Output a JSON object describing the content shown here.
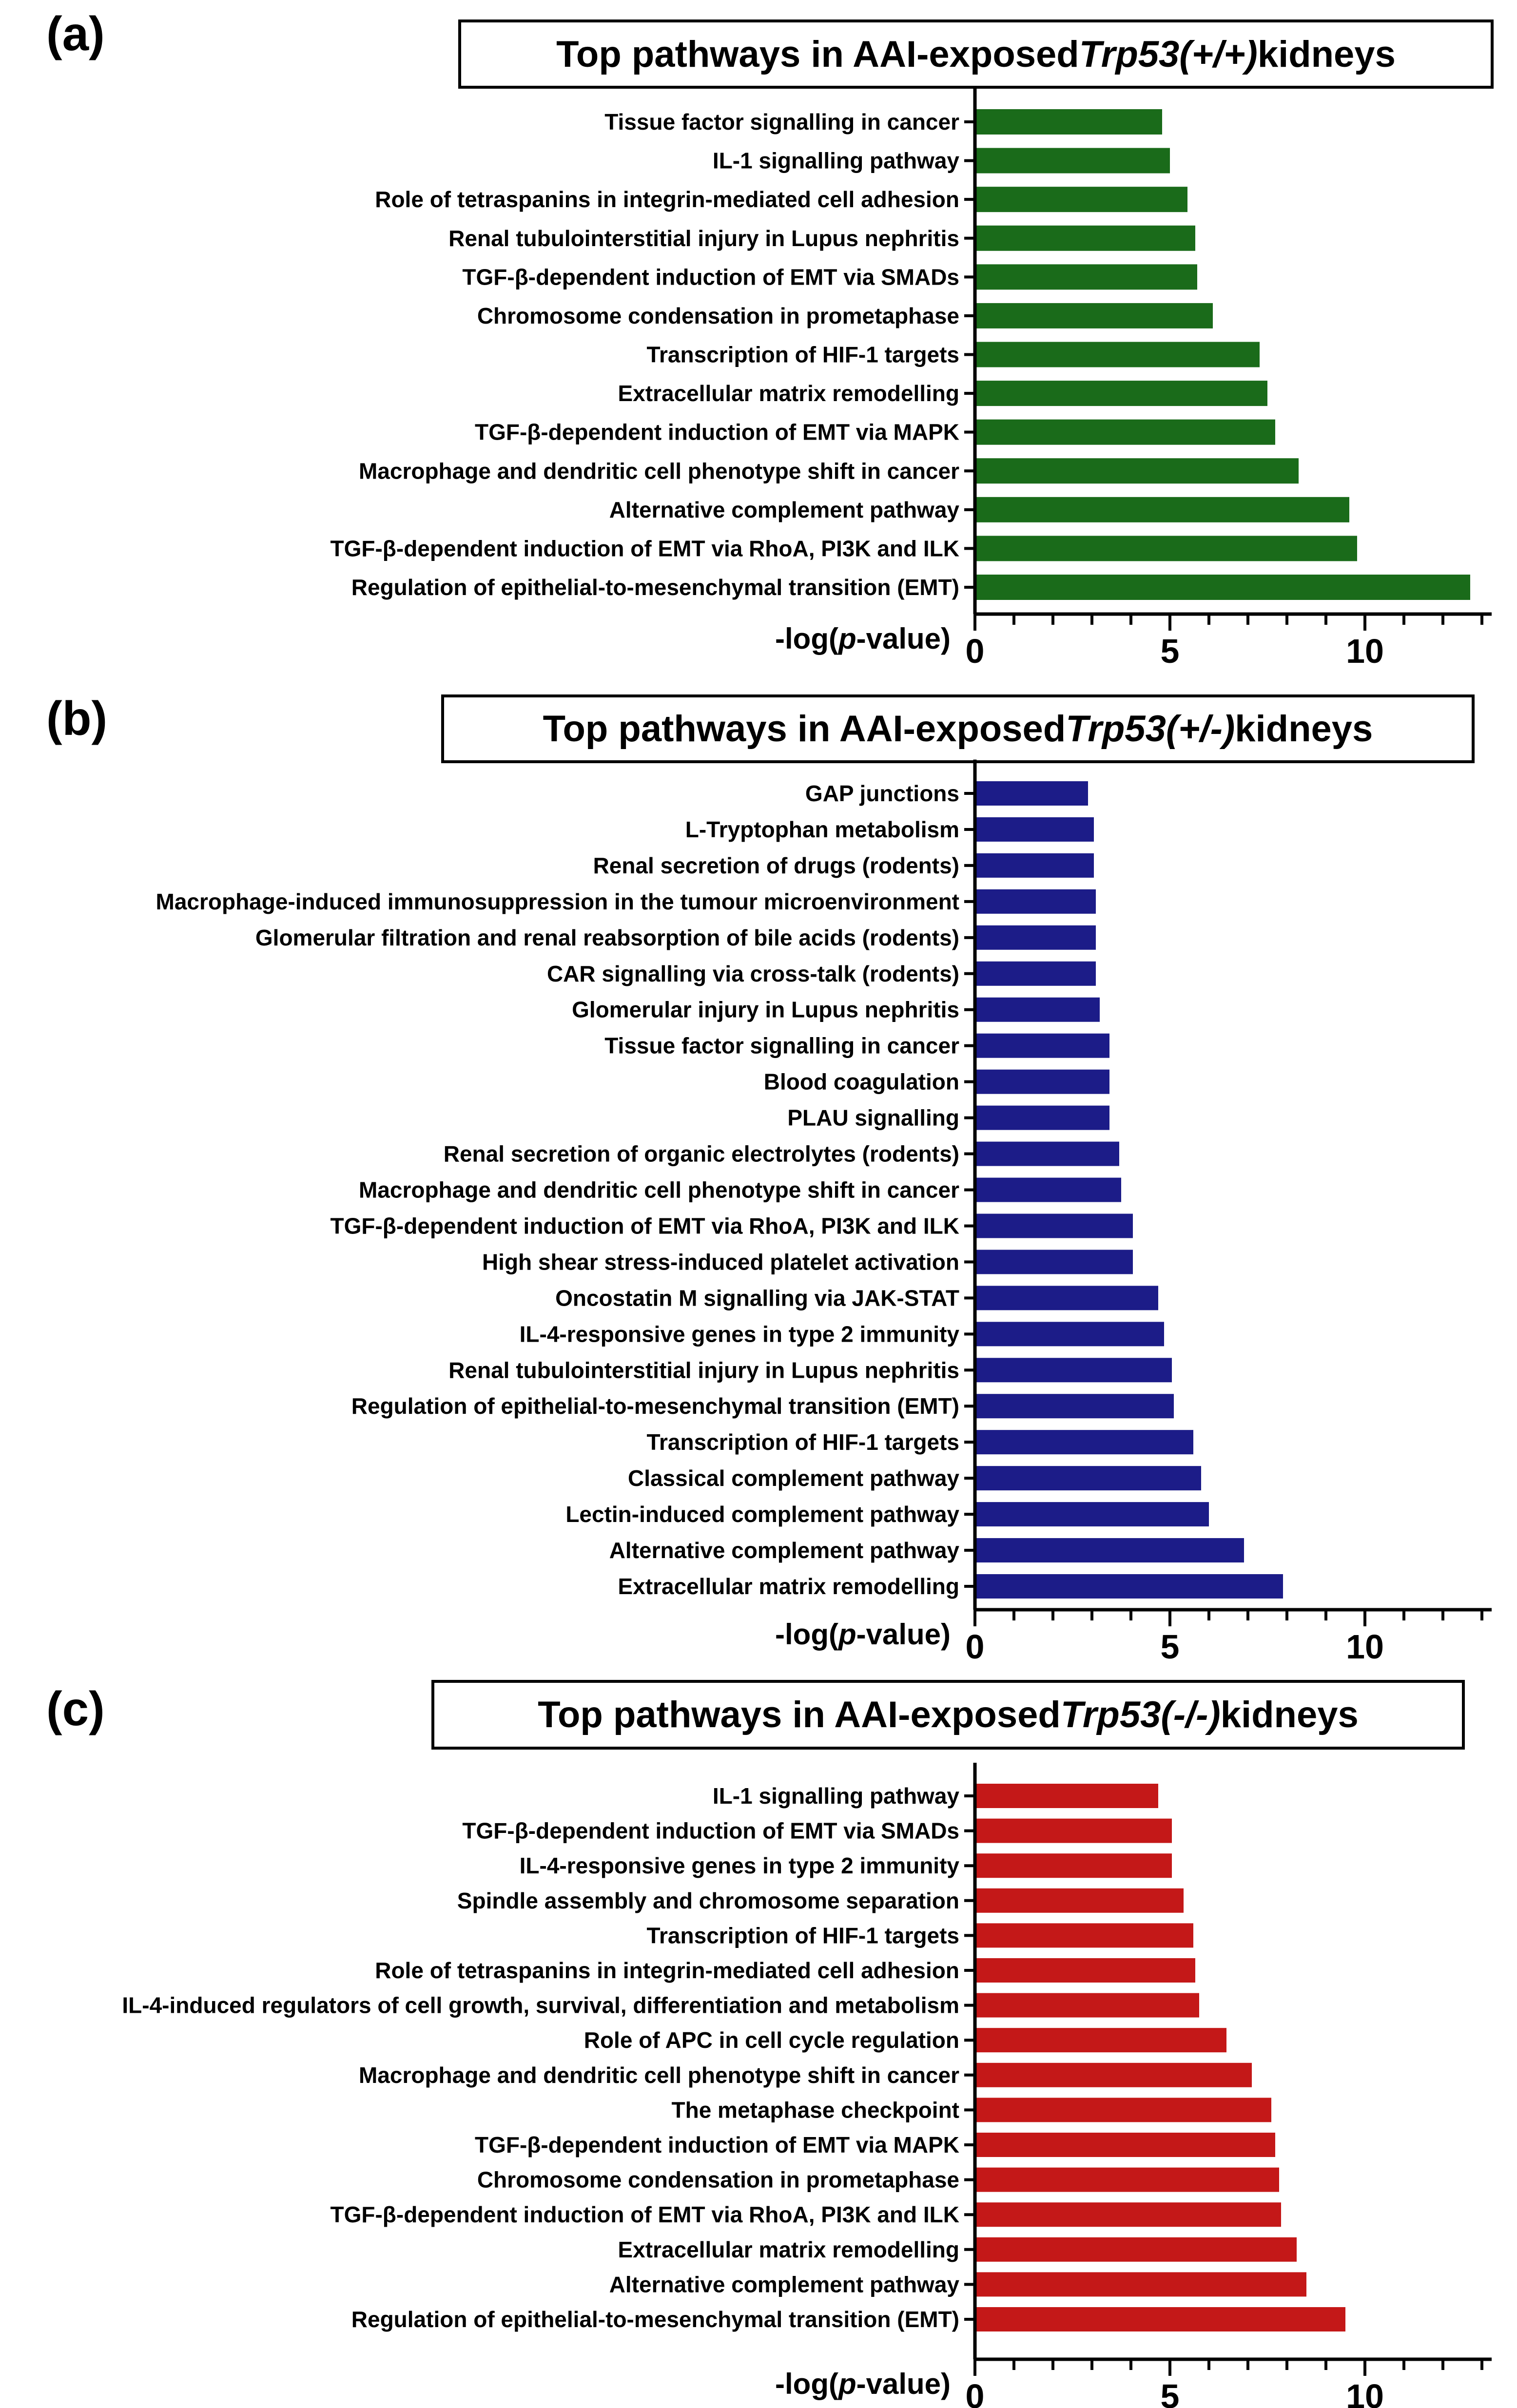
{
  "x_label_prefix": "-log(",
  "x_label_italic": "p",
  "x_label_suffix": "-value)",
  "chart_data": [
    {
      "type": "bar",
      "orientation": "horizontal",
      "panel": "(a)",
      "title": {
        "prefix": "Top pathways in AAI-exposed ",
        "italic": "Trp53(+/+)",
        "suffix": " kidneys"
      },
      "color": "#1a6b1a",
      "xlim": [
        0,
        13
      ],
      "ticks": [
        0,
        5,
        10
      ],
      "xlabel": "-log(p-value)",
      "categories": [
        "Tissue factor signalling in cancer",
        "IL-1 signalling pathway",
        "Role of tetraspanins in integrin-mediated cell adhesion",
        "Renal tubulointerstitial injury in Lupus nephritis",
        "TGF-β-dependent induction of EMT via SMADs",
        "Chromosome condensation in prometaphase",
        "Transcription of HIF-1 targets",
        "Extracellular matrix remodelling",
        "TGF-β-dependent induction of EMT via MAPK",
        "Macrophage and dendritic cell phenotype shift in cancer",
        "Alternative complement pathway",
        "TGF-β-dependent induction of EMT via RhoA, PI3K and ILK",
        "Regulation of epithelial-to-mesenchymal transition (EMT)"
      ],
      "values": [
        4.8,
        5.0,
        5.45,
        5.65,
        5.7,
        6.1,
        7.3,
        7.5,
        7.7,
        8.3,
        9.6,
        9.8,
        12.7
      ]
    },
    {
      "type": "bar",
      "orientation": "horizontal",
      "panel": "(b)",
      "title": {
        "prefix": "Top pathways in AAI-exposed ",
        "italic": "Trp53(+/-)",
        "suffix": " kidneys"
      },
      "color": "#1c1c88",
      "xlim": [
        0,
        13
      ],
      "ticks": [
        0,
        5,
        10
      ],
      "xlabel": "-log(p-value)",
      "categories": [
        "GAP junctions",
        "L-Tryptophan metabolism",
        "Renal secretion of drugs (rodents)",
        "Macrophage-induced immunosuppression in the tumour microenvironment",
        "Glomerular filtration and renal reabsorption of bile acids (rodents)",
        "CAR signalling via cross-talk (rodents)",
        "Glomerular injury in Lupus nephritis",
        "Tissue factor signalling in cancer",
        "Blood coagulation",
        "PLAU signalling",
        "Renal secretion of organic electrolytes (rodents)",
        "Macrophage and dendritic cell phenotype shift in cancer",
        "TGF-β-dependent induction of EMT via RhoA, PI3K and ILK",
        "High shear stress-induced platelet activation",
        "Oncostatin M signalling via JAK-STAT",
        "IL-4-responsive genes in type 2 immunity",
        "Renal tubulointerstitial injury in Lupus nephritis",
        "Regulation of epithelial-to-mesenchymal transition (EMT)",
        "Transcription of HIF-1 targets",
        "Classical complement pathway",
        "Lectin-induced complement pathway",
        "Alternative complement pathway",
        "Extracellular matrix remodelling"
      ],
      "values": [
        2.9,
        3.05,
        3.05,
        3.1,
        3.1,
        3.1,
        3.2,
        3.45,
        3.45,
        3.45,
        3.7,
        3.75,
        4.05,
        4.05,
        4.7,
        4.85,
        5.05,
        5.1,
        5.6,
        5.8,
        6.0,
        6.9,
        7.9
      ]
    },
    {
      "type": "bar",
      "orientation": "horizontal",
      "panel": "(c)",
      "title": {
        "prefix": "Top pathways in AAI-exposed ",
        "italic": "Trp53(-/-)",
        "suffix": " kidneys"
      },
      "color": "#c41818",
      "xlim": [
        0,
        13
      ],
      "ticks": [
        0,
        5,
        10
      ],
      "xlabel": "-log(p-value)",
      "categories": [
        "IL-1 signalling pathway",
        "TGF-β-dependent induction of EMT via SMADs",
        "IL-4-responsive genes in type 2 immunity",
        "Spindle assembly and chromosome separation",
        "Transcription of HIF-1 targets",
        "Role of tetraspanins in integrin-mediated cell adhesion",
        "IL-4-induced regulators of cell growth, survival, differentiation and metabolism",
        "Role of APC in cell cycle regulation",
        "Macrophage and dendritic cell phenotype shift in cancer",
        "The metaphase checkpoint",
        "TGF-β-dependent induction of EMT via MAPK",
        "Chromosome condensation in prometaphase",
        "TGF-β-dependent induction of EMT via RhoA, PI3K and ILK",
        "Extracellular matrix remodelling",
        "Alternative complement pathway",
        "Regulation of epithelial-to-mesenchymal transition (EMT)"
      ],
      "values": [
        4.7,
        5.05,
        5.05,
        5.35,
        5.6,
        5.65,
        5.75,
        6.45,
        7.1,
        7.6,
        7.7,
        7.8,
        7.85,
        8.25,
        8.5,
        9.5
      ]
    }
  ]
}
